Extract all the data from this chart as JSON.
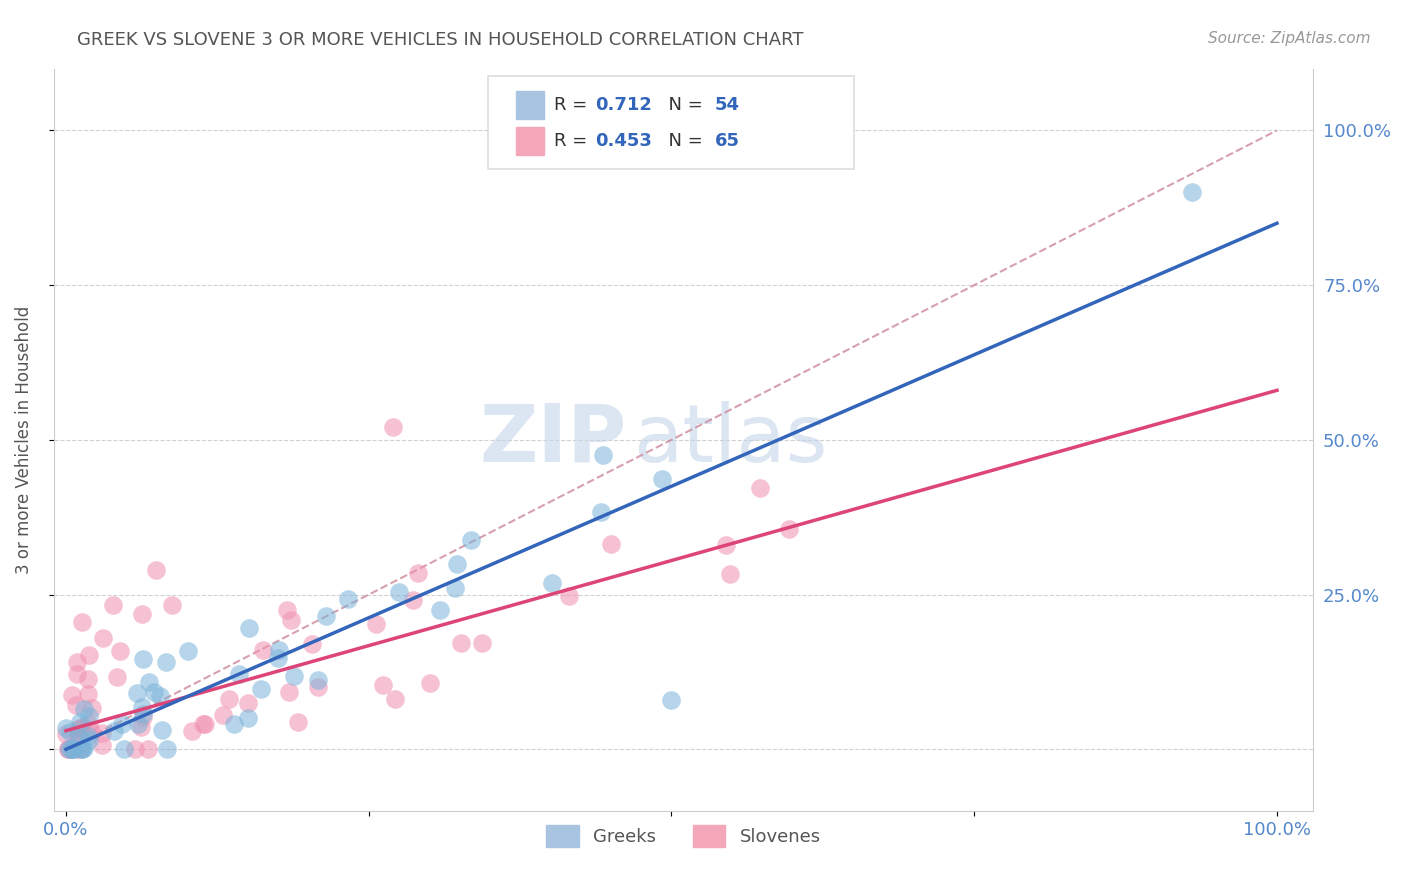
{
  "title": "GREEK VS SLOVENE 3 OR MORE VEHICLES IN HOUSEHOLD CORRELATION CHART",
  "source": "Source: ZipAtlas.com",
  "ylabel": "3 or more Vehicles in Household",
  "greek_color": "#7ab3d9",
  "slovene_color": "#f090b0",
  "greek_line_color": "#3366bb",
  "slovene_line_color": "#dd4477",
  "dash_line_color": "#cc8899",
  "watermark_color": "#ccd8ee",
  "background_color": "#ffffff",
  "grid_color": "#cccccc",
  "title_color": "#555555",
  "source_color": "#999999",
  "tick_color": "#5588cc",
  "ylabel_color": "#555555",
  "legend_box_color": "#dddddd",
  "legend_r_n_color": "#3366bb",
  "legend_text_color": "#333333",
  "bottom_legend_text_color": "#555555",
  "greek_N": 54,
  "slovene_N": 65,
  "greek_line_x0": 0,
  "greek_line_y0": 0,
  "greek_line_x1": 100,
  "greek_line_y1": 85,
  "slovene_line_x0": 0,
  "slovene_line_y0": 5,
  "slovene_line_x1": 100,
  "slovene_line_y1": 60,
  "diag_x0": 0,
  "diag_y0": 0,
  "diag_x1": 100,
  "diag_y1": 100,
  "xlim": [
    -1,
    103
  ],
  "ylim": [
    -10,
    110
  ],
  "x_ticks": [
    0,
    25,
    50,
    75,
    100
  ],
  "x_tick_labels": [
    "0.0%",
    "",
    "",
    "",
    "100.0%"
  ],
  "y_ticks_right": [
    0,
    25,
    50,
    75,
    100
  ],
  "y_tick_labels_right": [
    "",
    "25.0%",
    "50.0%",
    "75.0%",
    "100.0%"
  ],
  "watermark_zip": "ZIP",
  "watermark_atlas": "atlas",
  "scatter_size": 180,
  "scatter_alpha": 0.55
}
